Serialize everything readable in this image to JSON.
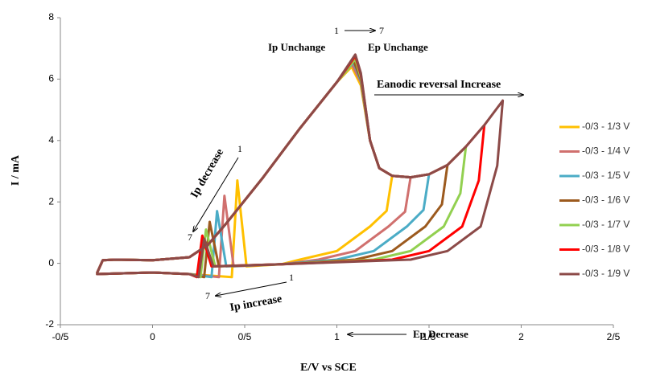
{
  "chart_data": {
    "type": "line",
    "x_label": "E/V vs SCE",
    "y_label": "I / mA",
    "xlim": [
      -0.5,
      2.5
    ],
    "xticks": [
      {
        "value": -0.5,
        "label": "-0/5"
      },
      0,
      {
        "value": 0.5,
        "label": "0/5"
      },
      1,
      {
        "value": 1.5,
        "label": "1/5"
      },
      2,
      {
        "value": 2.5,
        "label": "2/5"
      }
    ],
    "ylim": [
      -2,
      8
    ],
    "yticks": [
      -2,
      0,
      2,
      4,
      6,
      8
    ],
    "grid": false,
    "legend": "right",
    "annotations": [
      "1",
      "7",
      "Ip Unchange",
      "Ep Unchange",
      "Eanodic reversal Increase",
      "Ip decrease",
      "1",
      "7",
      "Ip increase",
      "1",
      "7",
      "Ep Decrease"
    ],
    "series": [
      {
        "name": "-0/3 - 1/3 V",
        "color": "#ffc000",
        "x": [
          -0.3,
          -0.27,
          -0.2,
          0,
          0.2,
          0.3,
          0.4,
          0.6,
          0.8,
          1.0,
          1.08,
          1.13,
          1.18,
          1.23,
          1.3,
          1.27,
          1.18,
          1.0,
          0.8,
          0.7,
          0.51,
          0.46,
          0.43,
          0.2,
          0,
          -0.3
        ],
        "values": [
          -0.3,
          0.1,
          0.12,
          0.1,
          0.2,
          0.6,
          1.3,
          2.8,
          4.4,
          5.9,
          6.4,
          5.8,
          4.0,
          3.1,
          2.85,
          1.71,
          1.2,
          0.4,
          0.12,
          -0.03,
          -0.1,
          2.7,
          -0.45,
          -0.35,
          -0.3,
          -0.35
        ]
      },
      {
        "name": "-0/3 - 1/4 V",
        "color": "#d0706e",
        "x": [
          -0.3,
          -0.27,
          -0.2,
          0,
          0.2,
          0.3,
          0.4,
          0.6,
          0.8,
          1.0,
          1.08,
          1.13,
          1.18,
          1.23,
          1.3,
          1.4,
          1.37,
          1.28,
          1.1,
          0.9,
          0.7,
          0.44,
          0.39,
          0.36,
          0.2,
          0,
          -0.3
        ],
        "values": [
          -0.3,
          0.1,
          0.12,
          0.1,
          0.2,
          0.6,
          1.3,
          2.8,
          4.4,
          5.9,
          6.5,
          5.9,
          4.0,
          3.1,
          2.85,
          2.8,
          1.68,
          1.2,
          0.4,
          0.12,
          -0.03,
          -0.1,
          2.2,
          -0.45,
          -0.35,
          -0.3,
          -0.35
        ]
      },
      {
        "name": "-0/3 - 1/5 V",
        "color": "#4bacc6",
        "x": [
          -0.3,
          -0.27,
          -0.2,
          0,
          0.2,
          0.3,
          0.4,
          0.6,
          0.8,
          1.0,
          1.09,
          1.13,
          1.18,
          1.23,
          1.3,
          1.4,
          1.5,
          1.47,
          1.38,
          1.2,
          1.0,
          0.7,
          0.4,
          0.35,
          0.32,
          0.2,
          0,
          -0.3
        ],
        "values": [
          -0.3,
          0.1,
          0.12,
          0.1,
          0.2,
          0.6,
          1.3,
          2.8,
          4.4,
          5.9,
          6.55,
          5.95,
          4.0,
          3.1,
          2.85,
          2.8,
          2.9,
          1.74,
          1.2,
          0.4,
          0.12,
          -0.03,
          -0.1,
          1.7,
          -0.45,
          -0.35,
          -0.3,
          -0.35
        ]
      },
      {
        "name": "-0/3 - 1/6 V",
        "color": "#9c5a1e",
        "x": [
          -0.3,
          -0.27,
          -0.2,
          0,
          0.2,
          0.3,
          0.4,
          0.6,
          0.8,
          1.0,
          1.09,
          1.13,
          1.18,
          1.23,
          1.3,
          1.4,
          1.5,
          1.6,
          1.57,
          1.48,
          1.3,
          1.1,
          0.7,
          0.36,
          0.31,
          0.28,
          0.2,
          0,
          -0.3
        ],
        "values": [
          -0.3,
          0.1,
          0.12,
          0.1,
          0.2,
          0.6,
          1.3,
          2.8,
          4.4,
          5.9,
          6.6,
          6.0,
          4.0,
          3.1,
          2.85,
          2.8,
          2.9,
          3.2,
          1.92,
          1.2,
          0.4,
          0.12,
          -0.03,
          -0.1,
          1.35,
          -0.45,
          -0.35,
          -0.3,
          -0.35
        ]
      },
      {
        "name": "-0/3 - 1/7 V",
        "color": "#92d050",
        "x": [
          -0.3,
          -0.27,
          -0.2,
          0,
          0.2,
          0.3,
          0.4,
          0.6,
          0.8,
          1.0,
          1.1,
          1.13,
          1.18,
          1.23,
          1.3,
          1.4,
          1.5,
          1.6,
          1.7,
          1.67,
          1.58,
          1.4,
          1.2,
          0.7,
          0.34,
          0.29,
          0.26,
          0.2,
          0,
          -0.3
        ],
        "values": [
          -0.3,
          0.1,
          0.12,
          0.1,
          0.2,
          0.6,
          1.3,
          2.8,
          4.4,
          5.9,
          6.65,
          6.05,
          4.0,
          3.1,
          2.85,
          2.8,
          2.9,
          3.2,
          3.8,
          2.28,
          1.2,
          0.4,
          0.12,
          -0.03,
          -0.1,
          1.1,
          -0.45,
          -0.35,
          -0.3,
          -0.35
        ]
      },
      {
        "name": "-0/3 - 1/8 V",
        "color": "#ff0000",
        "x": [
          -0.3,
          -0.27,
          -0.2,
          0,
          0.2,
          0.3,
          0.4,
          0.6,
          0.8,
          1.0,
          1.1,
          1.13,
          1.18,
          1.23,
          1.3,
          1.4,
          1.5,
          1.6,
          1.7,
          1.8,
          1.77,
          1.68,
          1.5,
          1.3,
          0.7,
          0.32,
          0.27,
          0.24,
          0.2,
          0,
          -0.3
        ],
        "values": [
          -0.3,
          0.1,
          0.12,
          0.1,
          0.2,
          0.6,
          1.3,
          2.8,
          4.4,
          5.9,
          6.75,
          6.15,
          4.0,
          3.1,
          2.85,
          2.8,
          2.9,
          3.2,
          3.8,
          4.5,
          2.7,
          1.2,
          0.4,
          0.12,
          -0.03,
          -0.1,
          0.9,
          -0.45,
          -0.35,
          -0.3,
          -0.35
        ]
      },
      {
        "name": "-0/3 - 1/9 V",
        "color": "#8c4a48",
        "x": [
          -0.3,
          -0.27,
          -0.2,
          0,
          0.2,
          0.3,
          0.4,
          0.6,
          0.8,
          1.0,
          1.1,
          1.13,
          1.18,
          1.23,
          1.3,
          1.4,
          1.5,
          1.6,
          1.7,
          1.8,
          1.9,
          1.87,
          1.78,
          1.6,
          1.4,
          0.7,
          0.33,
          0.28,
          0.25,
          0.2,
          0,
          -0.3
        ],
        "values": [
          -0.3,
          0.1,
          0.12,
          0.1,
          0.2,
          0.6,
          1.3,
          2.8,
          4.4,
          5.9,
          6.8,
          6.2,
          4.0,
          3.1,
          2.85,
          2.8,
          2.9,
          3.2,
          3.8,
          4.5,
          5.3,
          3.18,
          1.2,
          0.4,
          0.12,
          -0.03,
          -0.1,
          0.8,
          -0.45,
          -0.35,
          -0.3,
          -0.35
        ]
      }
    ]
  }
}
